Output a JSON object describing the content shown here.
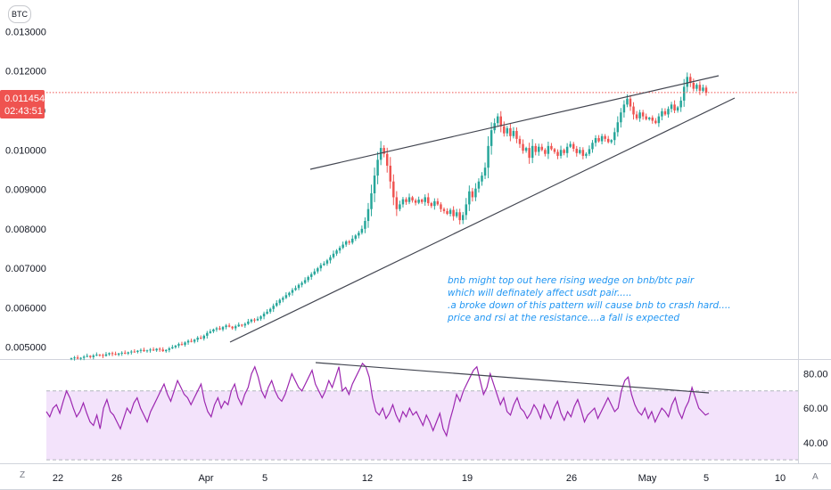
{
  "symbol": "BTC",
  "price_badge": {
    "price": "0.011454",
    "countdown": "02:43:51",
    "color": "#ef5350"
  },
  "annotation": [
    "bnb might top out here rising wedge on bnb/btc pair",
    "which will definately affect usdt pair.....",
    ".a broke down of this pattern will cause bnb to crash hard....",
    "price and rsi at the resistance....a fall is expected"
  ],
  "corner": {
    "left": "Z",
    "right": "A"
  },
  "colors": {
    "up": "#26a69a",
    "down": "#ef5350",
    "rsi_line": "#9c27b0",
    "rsi_band": "#f3e3fb"
  },
  "chart_data": [
    {
      "type": "candlestick",
      "title": "",
      "y_ticks": [
        "0.013000",
        "0.012000",
        "0.011000",
        "0.010000",
        "0.009000",
        "0.008000",
        "0.007000",
        "0.006000",
        "0.005000"
      ],
      "ylim": [
        0.0047,
        0.0138
      ],
      "x_ticks": [
        "22",
        "26",
        "Apr",
        "5",
        "12",
        "19",
        "26",
        "May",
        "5",
        "10"
      ],
      "current_price": 0.011454,
      "close": [
        0.00472,
        0.00474,
        0.00471,
        0.00473,
        0.00476,
        0.00478,
        0.00475,
        0.00479,
        0.00481,
        0.0048,
        0.00478,
        0.00482,
        0.00485,
        0.00483,
        0.00481,
        0.00484,
        0.00486,
        0.00484,
        0.00487,
        0.00489,
        0.00488,
        0.00491,
        0.00493,
        0.0049,
        0.00492,
        0.00494,
        0.00492,
        0.00496,
        0.00494,
        0.0049,
        0.00493,
        0.00497,
        0.005,
        0.00504,
        0.00508,
        0.00506,
        0.00512,
        0.00516,
        0.00514,
        0.00519,
        0.00524,
        0.00522,
        0.00529,
        0.00536,
        0.0054,
        0.00545,
        0.00548,
        0.00545,
        0.00551,
        0.00555,
        0.00552,
        0.00548,
        0.00553,
        0.00557,
        0.00555,
        0.00559,
        0.00565,
        0.0057,
        0.00568,
        0.00572,
        0.00578,
        0.00585,
        0.0059,
        0.00597,
        0.00605,
        0.00612,
        0.0062,
        0.00625,
        0.00632,
        0.00638,
        0.00645,
        0.0065,
        0.00658,
        0.00663,
        0.0067,
        0.00678,
        0.00685,
        0.00692,
        0.007,
        0.00708,
        0.00712,
        0.0072,
        0.00728,
        0.00737,
        0.00745,
        0.00752,
        0.0076,
        0.00768,
        0.00765,
        0.00775,
        0.00783,
        0.0079,
        0.008,
        0.0082,
        0.0085,
        0.0089,
        0.00935,
        0.00975,
        0.01005,
        0.0099,
        0.0096,
        0.0092,
        0.0088,
        0.0085,
        0.00862,
        0.00875,
        0.00868,
        0.0088,
        0.00872,
        0.00866,
        0.00874,
        0.00868,
        0.0088,
        0.00865,
        0.00858,
        0.0087,
        0.00862,
        0.0085,
        0.00845,
        0.00838,
        0.00848,
        0.00832,
        0.00842,
        0.00822,
        0.00835,
        0.00862,
        0.00895,
        0.0088,
        0.00902,
        0.0092,
        0.00935,
        0.00955,
        0.0101,
        0.0105,
        0.01068,
        0.01085,
        0.0106,
        0.01042,
        0.01055,
        0.01035,
        0.01048,
        0.01028,
        0.01015,
        0.00998,
        0.01005,
        0.0098,
        0.0101,
        0.00995,
        0.01008,
        0.01,
        0.0099,
        0.0101,
        0.01002,
        0.00995,
        0.00985,
        0.01,
        0.00992,
        0.01008,
        0.01015,
        0.01003,
        0.00992,
        0.01,
        0.00985,
        0.0099,
        0.01002,
        0.01018,
        0.0103,
        0.01022,
        0.01035,
        0.01028,
        0.0102,
        0.01025,
        0.01045,
        0.0107,
        0.01095,
        0.01115,
        0.0113,
        0.0111,
        0.0109,
        0.0108,
        0.01095,
        0.01085,
        0.01078,
        0.01082,
        0.01074,
        0.01068,
        0.01085,
        0.01098,
        0.0109,
        0.01104,
        0.01115,
        0.011,
        0.01108,
        0.01125,
        0.0116,
        0.01185,
        0.0117,
        0.01155,
        0.01165,
        0.0115,
        0.01158,
        0.01145
      ]
    },
    {
      "type": "line",
      "title": "",
      "y_ticks": [
        "80.00",
        "60.00",
        "40.00"
      ],
      "ylim": [
        28,
        88
      ],
      "band": [
        30,
        70
      ],
      "values": [
        58,
        55,
        60,
        62,
        57,
        64,
        70,
        66,
        60,
        55,
        58,
        63,
        57,
        52,
        50,
        56,
        48,
        60,
        65,
        58,
        56,
        52,
        48,
        54,
        60,
        57,
        63,
        66,
        60,
        56,
        52,
        58,
        62,
        66,
        70,
        74,
        68,
        64,
        70,
        76,
        72,
        68,
        66,
        62,
        66,
        70,
        74,
        64,
        58,
        55,
        62,
        66,
        60,
        64,
        62,
        70,
        74,
        66,
        62,
        68,
        72,
        80,
        84,
        78,
        70,
        66,
        72,
        76,
        70,
        66,
        64,
        68,
        74,
        80,
        76,
        72,
        70,
        74,
        78,
        82,
        74,
        70,
        66,
        70,
        76,
        72,
        78,
        84,
        70,
        72,
        68,
        74,
        78,
        82,
        86,
        84,
        78,
        66,
        58,
        56,
        60,
        54,
        57,
        62,
        56,
        52,
        58,
        55,
        60,
        56,
        58,
        54,
        50,
        56,
        52,
        47,
        52,
        57,
        48,
        44,
        53,
        60,
        68,
        64,
        70,
        74,
        78,
        82,
        84,
        76,
        68,
        72,
        80,
        74,
        68,
        62,
        66,
        58,
        56,
        62,
        66,
        60,
        58,
        54,
        57,
        62,
        59,
        54,
        62,
        58,
        54,
        60,
        64,
        57,
        53,
        58,
        55,
        61,
        65,
        59,
        52,
        56,
        58,
        60,
        54,
        58,
        62,
        66,
        62,
        58,
        60,
        70,
        76,
        78,
        68,
        62,
        58,
        56,
        60,
        54,
        58,
        52,
        56,
        60,
        58,
        55,
        62,
        66,
        58,
        54,
        60,
        64,
        72,
        66,
        60,
        58,
        56,
        57
      ]
    }
  ]
}
